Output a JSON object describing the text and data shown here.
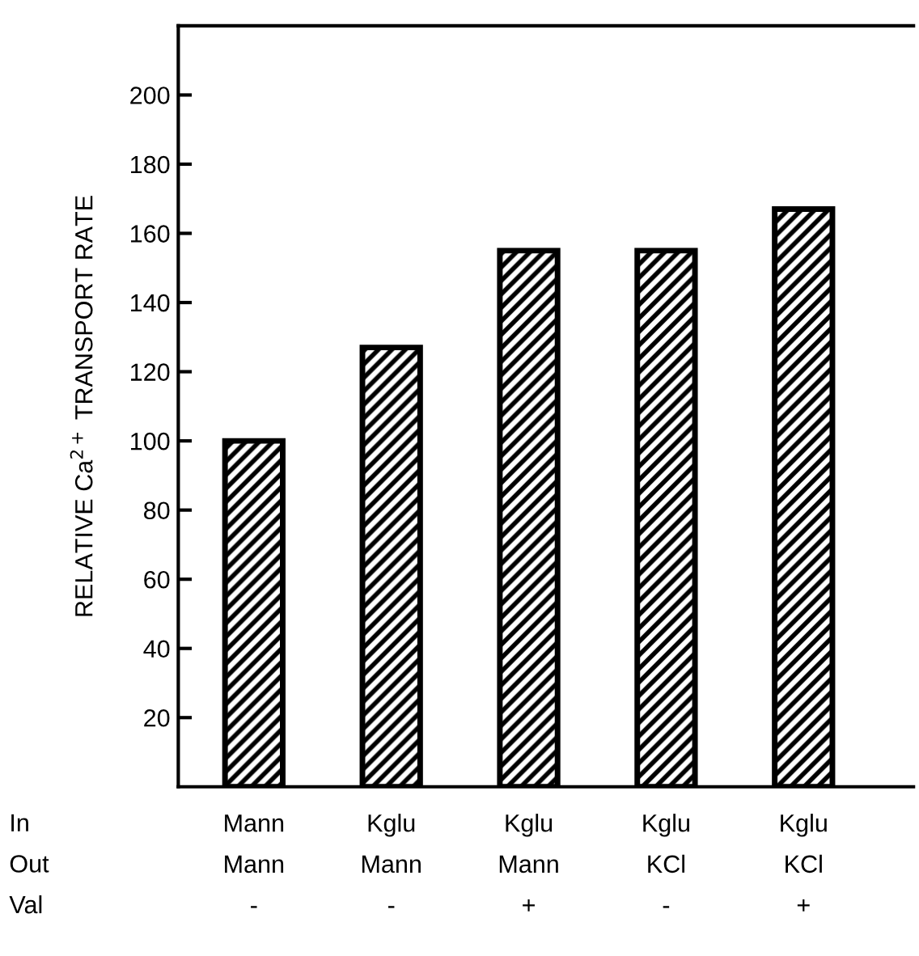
{
  "chart_data": {
    "type": "bar",
    "ylabel": "RELATIVE Ca$^{2+}$ TRANSPORT RATE",
    "categories": [
      "Mann\nMann\n-",
      "Kglu\nMann\n-",
      "Kglu\nMann\n+",
      "Kglu\nKCl\n-",
      "Kglu\nKCl\n+"
    ],
    "values": [
      100,
      127,
      155,
      155,
      167
    ],
    "color": "#000000",
    "ylim": [
      0,
      220
    ],
    "yticks": [
      20,
      40,
      60,
      80,
      100,
      120,
      140,
      160,
      180,
      200
    ],
    "annotations": [
      "In\nOut\nVal"
    ],
    "grid": false,
    "legend": false
  }
}
